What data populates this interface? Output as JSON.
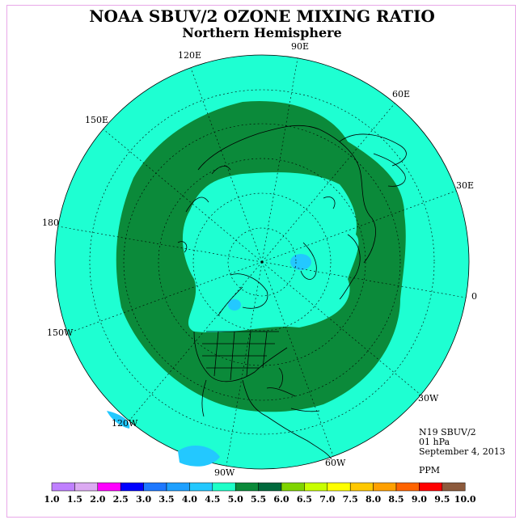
{
  "title": "NOAA SBUV/2 OZONE MIXING RATIO",
  "subtitle": "Northern Hemisphere",
  "longitude_labels": [
    {
      "text": "90E"
    },
    {
      "text": "60E"
    },
    {
      "text": "30E"
    },
    {
      "text": "0"
    },
    {
      "text": "30W"
    },
    {
      "text": "60W"
    },
    {
      "text": "90W"
    },
    {
      "text": "120W"
    },
    {
      "text": "150W"
    },
    {
      "text": "180"
    },
    {
      "text": "150E"
    },
    {
      "text": "120E"
    }
  ],
  "info": {
    "instrument": "N19 SBUV/2",
    "level": "01 hPa",
    "date": "September 4, 2013",
    "units": "PPM"
  },
  "colorbar": {
    "colors": [
      "#bf80ff",
      "#dcaaf2",
      "#ff00ff",
      "#0000ff",
      "#1e78ff",
      "#1ea0ff",
      "#23c8ff",
      "#1effc8",
      "#0b8a3a",
      "#00693c",
      "#7fd400",
      "#c8ff00",
      "#ffff00",
      "#ffc800",
      "#ffa000",
      "#ff6400",
      "#ff0000",
      "#8c5a3c"
    ],
    "labels": [
      "1.0",
      "1.5",
      "2.0",
      "2.5",
      "3.0",
      "3.5",
      "4.0",
      "4.5",
      "5.0",
      "5.5",
      "6.0",
      "6.5",
      "7.0",
      "7.5",
      "8.0",
      "8.5",
      "9.0",
      "9.5",
      "10.0"
    ]
  },
  "map_colors": {
    "background_fill": "#1effd2",
    "ring_fill": "#0b8a3a",
    "low_patch": "#23c8ff"
  }
}
